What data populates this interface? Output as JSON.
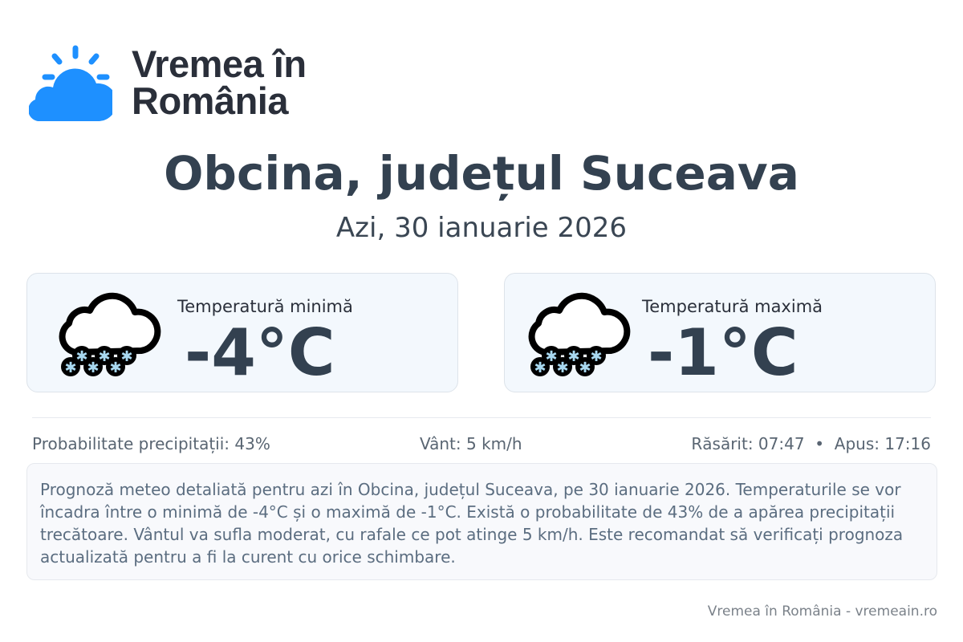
{
  "logo": {
    "line1": "Vremea în",
    "line2": "România",
    "color": "#1e90ff"
  },
  "header": {
    "title": "Obcina, județul Suceava",
    "subtitle": "Azi, 30 ianuarie 2026"
  },
  "cards": [
    {
      "label": "Temperatură minimă",
      "value": "-4°C",
      "icon": "snow-cloud-icon"
    },
    {
      "label": "Temperatură maximă",
      "value": "-1°C",
      "icon": "snow-cloud-icon"
    }
  ],
  "stats": {
    "precip": "Probabilitate precipitații: 43%",
    "wind": "Vânt: 5 km/h",
    "sun": "Răsărit: 07:47  •  Apus: 17:16"
  },
  "description": "Prognoză meteo detaliată pentru azi în Obcina, județul Suceava, pe 30 ianuarie 2026. Temperaturile se vor încadra între o minimă de -4°C și o maximă de -1°C. Există o probabilitate de 43% de a apărea precipitații trecătoare. Vântul va sufla moderat, cu rafale ce pot atinge 5 km/h. Este recomandat să verificați prognoza actualizată pentru a fi la curent cu orice schimbare.",
  "footer": "Vremea în România - vremeain.ro"
}
